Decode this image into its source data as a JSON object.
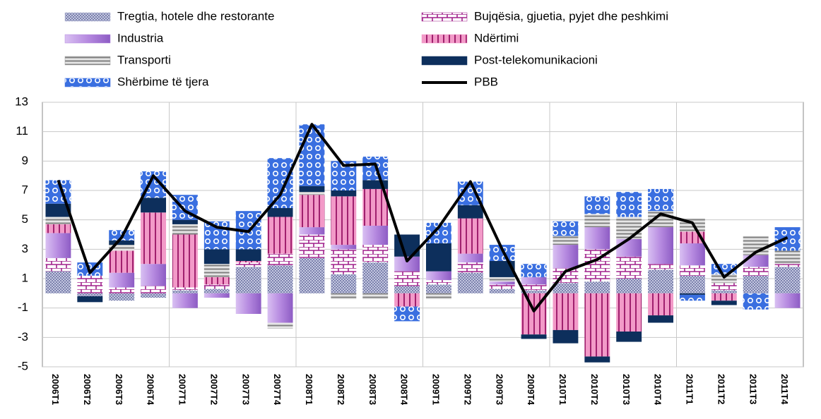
{
  "chart_data": {
    "type": "stacked-bar-line",
    "categories": [
      "2006T1",
      "2006T2",
      "2006T3",
      "2006T4",
      "2007T1",
      "2007T2",
      "2007T3",
      "2007T4",
      "2008T1",
      "2008T2",
      "2008T3",
      "2008T4",
      "2009T1",
      "2009T2",
      "2009T3",
      "2009T4",
      "2010T1",
      "2010T2",
      "2010T3",
      "2010T4",
      "2011T1",
      "2011T2",
      "2011T3",
      "2011T4"
    ],
    "series": [
      {
        "name": "Tregtia, hotele dhe restorante",
        "color": "#b8bcd8",
        "kind": "bar",
        "values": [
          1.5,
          -0.2,
          -0.5,
          -0.3,
          0.2,
          0.3,
          1.8,
          1.9,
          2.4,
          1.3,
          2.1,
          0.5,
          0.6,
          1.4,
          0.3,
          0.2,
          0.7,
          0.8,
          1.0,
          1.6,
          1.2,
          0.2,
          1.2,
          1.8
        ]
      },
      {
        "name": "Bujqësia, gjuetia, pyjet dhe peshkimi",
        "color": "#a0208c",
        "kind": "bar",
        "values": [
          0.9,
          1.2,
          0.4,
          0.5,
          0.2,
          0.3,
          0.3,
          0.8,
          1.6,
          1.7,
          1.2,
          1.0,
          0.3,
          0.7,
          0.3,
          0.4,
          1.0,
          2.2,
          1.5,
          0.4,
          0.7,
          0.5,
          0.6,
          0.2
        ]
      },
      {
        "name": "Industria",
        "color": "#b68ae0",
        "kind": "bar",
        "values": [
          1.7,
          0,
          1.0,
          1.5,
          -1.0,
          -0.3,
          -1.4,
          -2.0,
          0.5,
          0.3,
          1.3,
          1.0,
          0.6,
          0.6,
          0.2,
          0.5,
          1.6,
          1.5,
          1.2,
          2.5,
          1.5,
          0,
          0.8,
          -1.0
        ]
      },
      {
        "name": "Ndërtimi",
        "color": "#f29ac8",
        "kind": "bar",
        "values": [
          0.6,
          0,
          1.5,
          3.5,
          3.6,
          0.5,
          0.1,
          2.5,
          2.2,
          3.3,
          2.5,
          -0.9,
          0,
          2.4,
          0,
          -2.8,
          -2.5,
          -4.3,
          -2.6,
          -1.5,
          0.8,
          -0.5,
          0,
          0
        ]
      },
      {
        "name": "Transporti",
        "color": "#9a9a9a",
        "kind": "bar",
        "values": [
          0.5,
          0,
          0.4,
          0,
          0.7,
          0.9,
          0,
          -0.4,
          0.2,
          -0.4,
          -0.4,
          0,
          -0.4,
          0,
          0.3,
          0,
          0.6,
          0.9,
          1.5,
          1.1,
          0.9,
          0.6,
          1.3,
          0.9
        ]
      },
      {
        "name": "Post-telekomunikacioni",
        "color": "#0d2f5c",
        "kind": "bar",
        "values": [
          0.9,
          -0.4,
          0.3,
          1.0,
          0.3,
          1.0,
          0.8,
          0.6,
          0.4,
          0.4,
          0.6,
          1.5,
          1.9,
          0.9,
          1.1,
          -0.3,
          -0.9,
          -0.4,
          -0.7,
          -0.5,
          -0.1,
          -0.3,
          0,
          0
        ]
      },
      {
        "name": "Shërbime të tjera",
        "color": "#3a6fe0",
        "kind": "bar",
        "values": [
          1.6,
          0.9,
          0.7,
          1.8,
          1.7,
          1.9,
          2.6,
          3.4,
          4.2,
          2.0,
          1.6,
          -1.0,
          1.4,
          1.6,
          1.1,
          0.9,
          1.0,
          1.2,
          1.7,
          1.5,
          -0.4,
          0.7,
          -1.1,
          1.6
        ]
      },
      {
        "name": "PBB",
        "color": "#000000",
        "kind": "line",
        "values": [
          7.7,
          1.4,
          3.8,
          8.0,
          5.6,
          4.5,
          4.2,
          6.7,
          11.5,
          8.7,
          8.8,
          2.2,
          4.5,
          7.6,
          3.0,
          -1.2,
          1.5,
          2.3,
          3.7,
          5.4,
          4.8,
          1.1,
          2.8,
          3.8
        ]
      }
    ],
    "ylim": [
      -5,
      13
    ],
    "yticks": [
      -5,
      -3,
      -1,
      1,
      3,
      5,
      7,
      9,
      11,
      13
    ],
    "grid": true
  }
}
